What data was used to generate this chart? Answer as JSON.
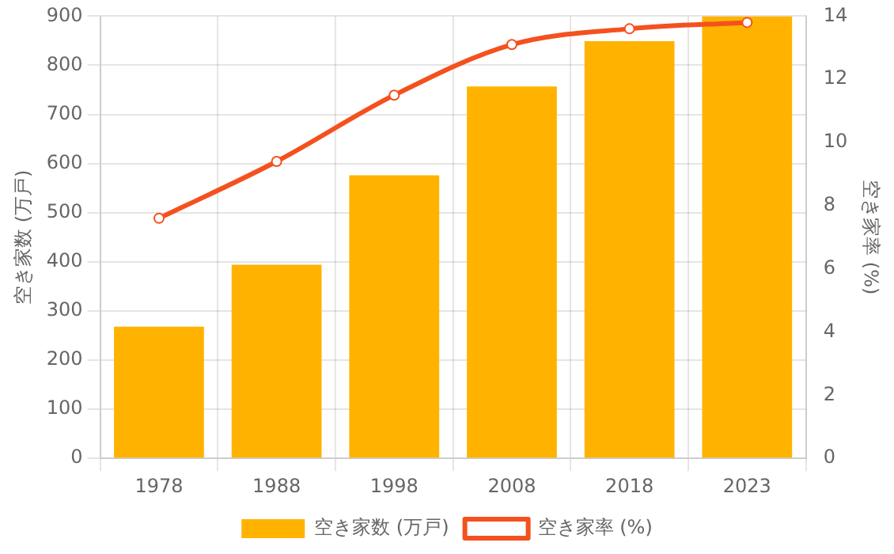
{
  "chart_data": {
    "type": "bar",
    "categories": [
      "1978",
      "1988",
      "1998",
      "2008",
      "2018",
      "2023"
    ],
    "series": [
      {
        "name": "空き家数 (万戸)",
        "color": "#ffb300",
        "values": [
          268,
          394,
          576,
          757,
          849,
          900
        ]
      },
      {
        "name": "空き家率 (%)",
        "type": "line",
        "axis": "y2",
        "color": "#f4511e",
        "values": [
          7.6,
          9.4,
          11.5,
          13.1,
          13.6,
          13.8
        ]
      }
    ],
    "ylabel": "空き家数 (万戸)",
    "y2label": "空き家率 (%)",
    "ylim": [
      0,
      900
    ],
    "yticks": [
      0,
      100,
      200,
      300,
      400,
      500,
      600,
      700,
      800,
      900
    ],
    "y2lim": [
      0,
      14
    ],
    "y2ticks": [
      0,
      2,
      4,
      6,
      8,
      10,
      12,
      14
    ],
    "grid": true,
    "legend": "bottom",
    "marker": "circle",
    "line_style": "solid"
  }
}
